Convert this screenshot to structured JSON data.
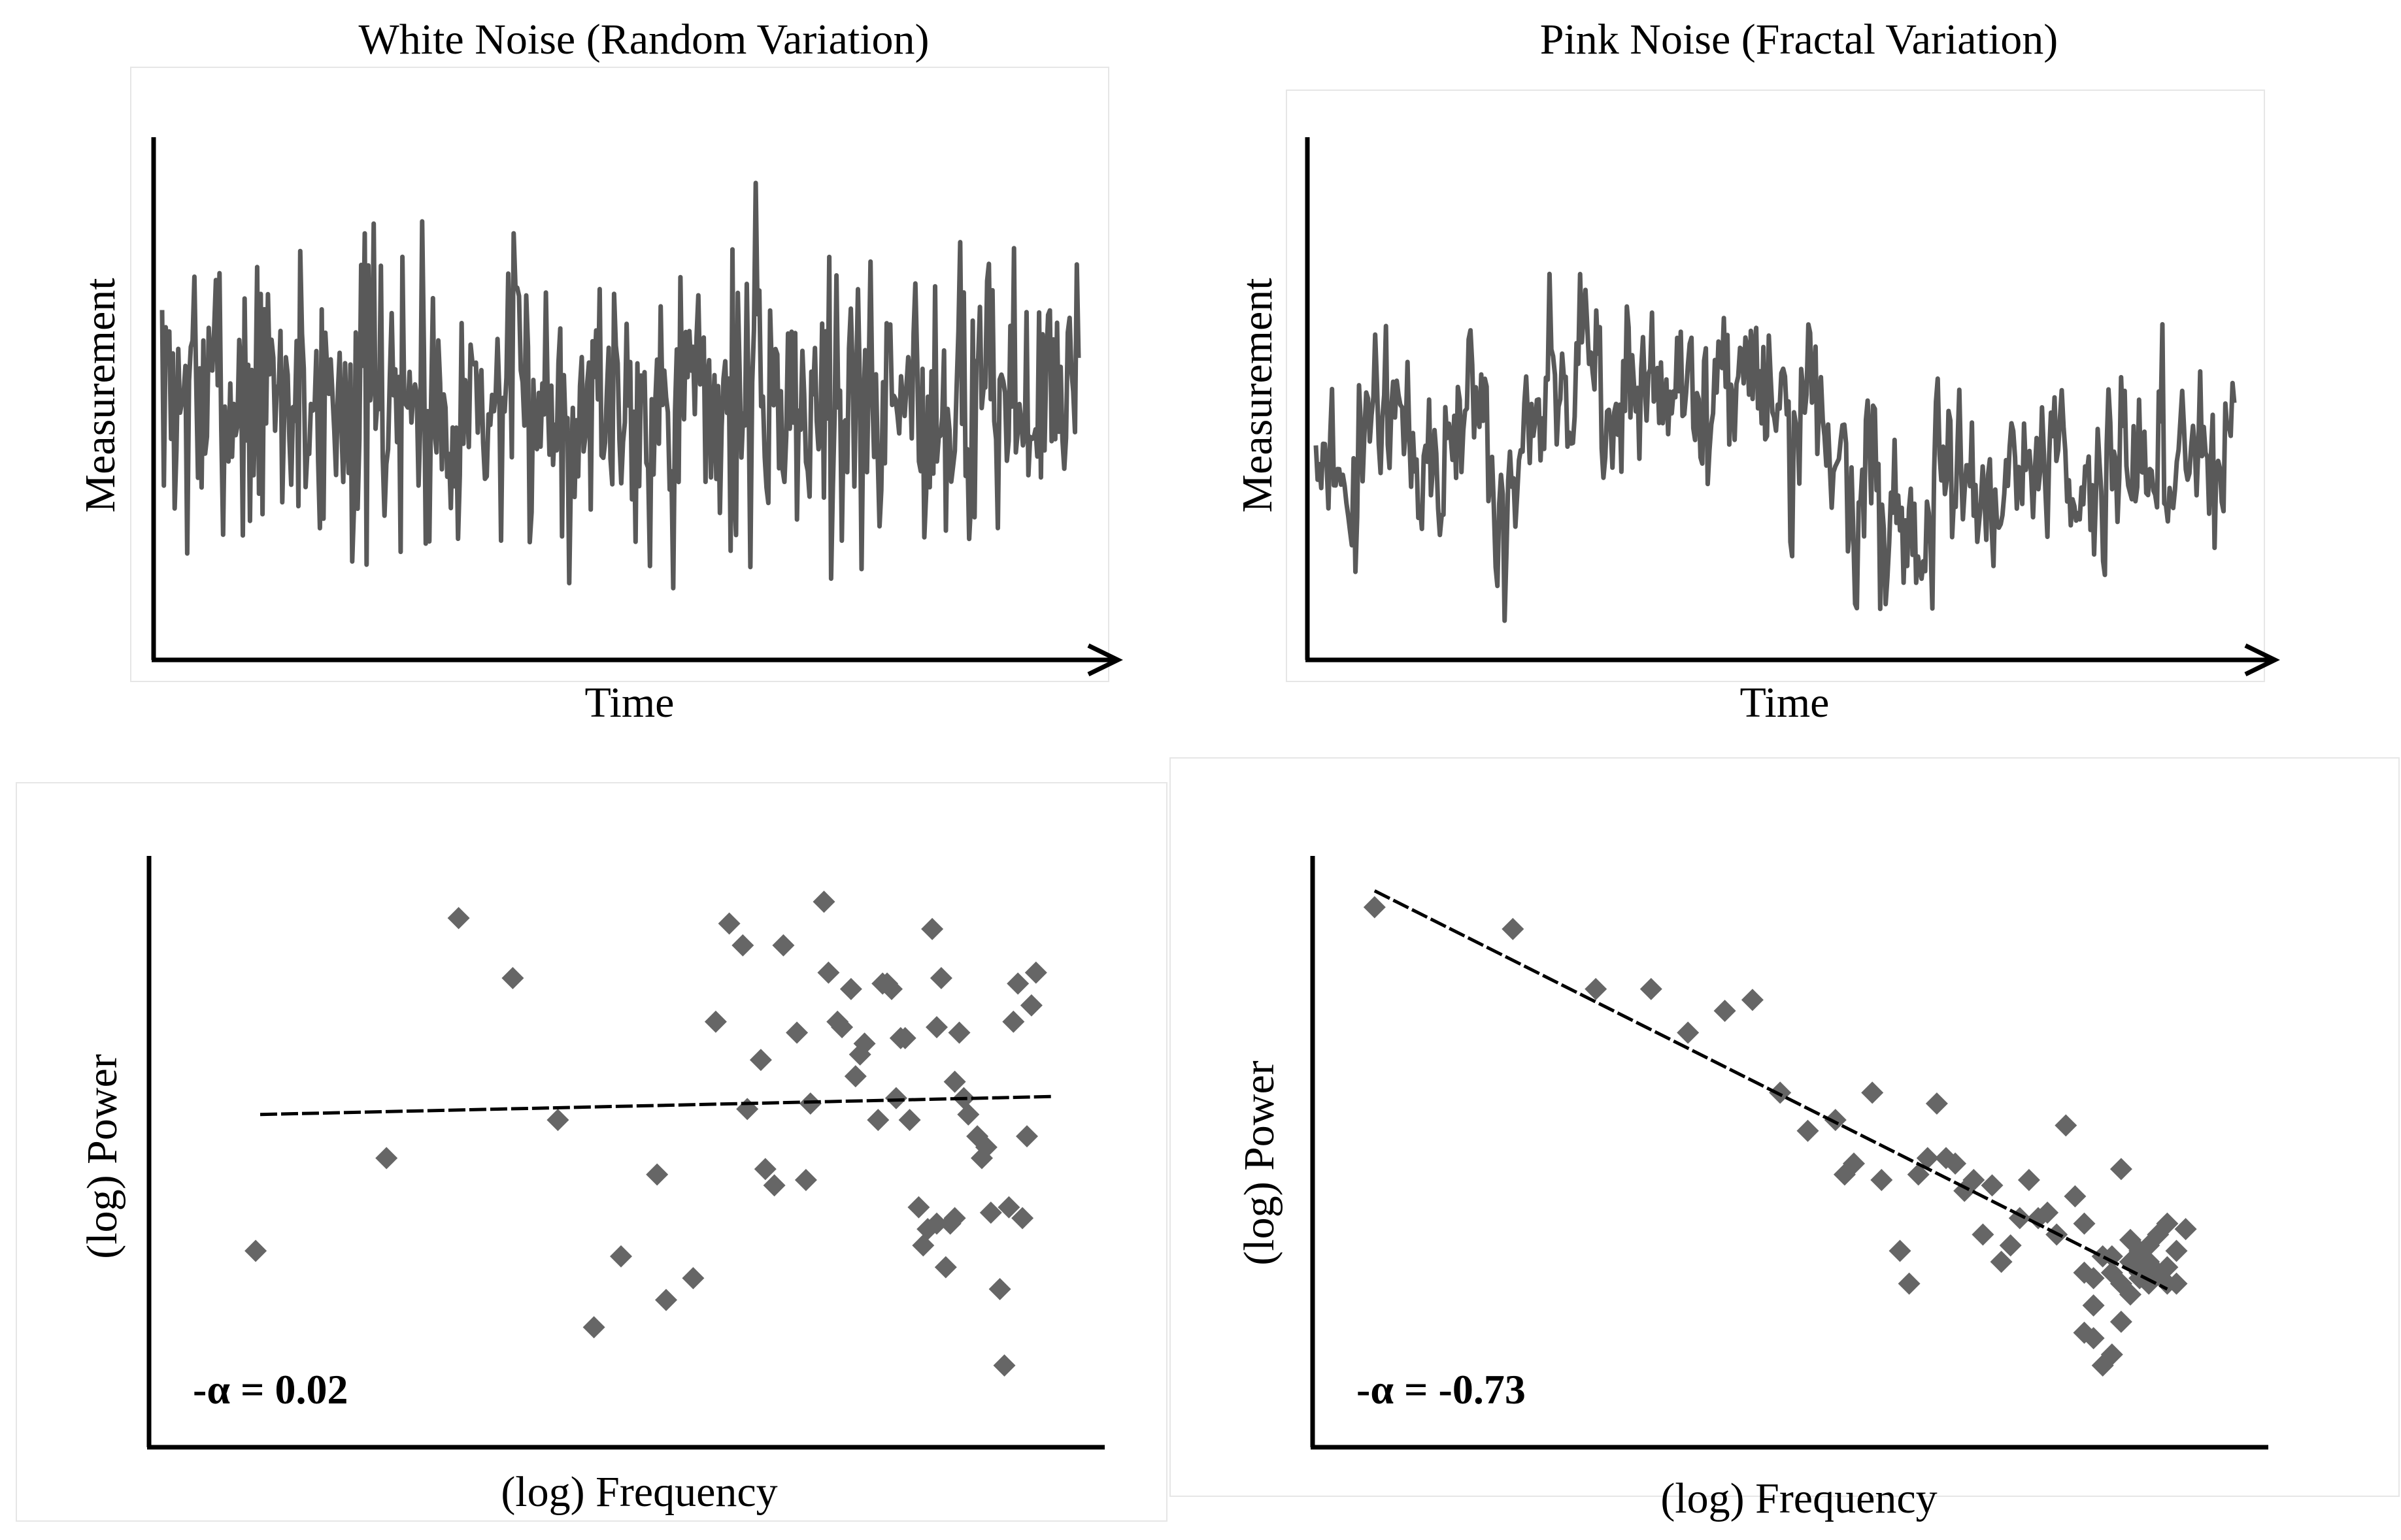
{
  "colors": {
    "series": "#595959",
    "marker": "#666666",
    "axis": "#000000",
    "trend": "#000000"
  },
  "chart_data": [
    {
      "id": "white-noise-series",
      "type": "line",
      "title": "White Noise (Random Variation)",
      "xlabel": "Time",
      "ylabel": "Measurement",
      "ticks": false,
      "grid": false,
      "ylim": [
        -1,
        1
      ],
      "generator": {
        "kind": "white",
        "n": 512,
        "seed": 7
      }
    },
    {
      "id": "pink-noise-series",
      "type": "line",
      "title": "Pink Noise (Fractal Variation)",
      "xlabel": "Time",
      "ylabel": "Measurement",
      "ticks": false,
      "grid": false,
      "ylim": [
        -1,
        1
      ],
      "generator": {
        "kind": "pink",
        "n": 512,
        "seed": 11
      }
    },
    {
      "id": "white-noise-spectrum",
      "type": "scatter",
      "xlabel": "(log) Frequency",
      "ylabel": "(log) Power",
      "annotation": "-α = 0.02",
      "slope": 0.02,
      "xlim": [
        0,
        100
      ],
      "ylim": [
        0,
        100
      ],
      "trendline": {
        "x": [
          10,
          98
        ],
        "y": [
          55.0,
          58.3
        ]
      },
      "points": [
        [
          9.5,
          30
        ],
        [
          24,
          47
        ],
        [
          32,
          91
        ],
        [
          38,
          80
        ],
        [
          43,
          54
        ],
        [
          47,
          16
        ],
        [
          50,
          29
        ],
        [
          54,
          44
        ],
        [
          55,
          21
        ],
        [
          58,
          25
        ],
        [
          60.5,
          72
        ],
        [
          62,
          90
        ],
        [
          63.5,
          86
        ],
        [
          64,
          56
        ],
        [
          65.5,
          65
        ],
        [
          66,
          45
        ],
        [
          67,
          42
        ],
        [
          68,
          86
        ],
        [
          69.5,
          70
        ],
        [
          70.5,
          43
        ],
        [
          71,
          57
        ],
        [
          72.5,
          94
        ],
        [
          73,
          81
        ],
        [
          74,
          72
        ],
        [
          74.5,
          71
        ],
        [
          75.5,
          78
        ],
        [
          76,
          62
        ],
        [
          76.5,
          66
        ],
        [
          77,
          68
        ],
        [
          78.5,
          54
        ],
        [
          79,
          79
        ],
        [
          79.5,
          79
        ],
        [
          80,
          78
        ],
        [
          80.5,
          58
        ],
        [
          81,
          69
        ],
        [
          81.5,
          69
        ],
        [
          82,
          54
        ],
        [
          83,
          38
        ],
        [
          84.5,
          89
        ],
        [
          85,
          71
        ],
        [
          85.5,
          80
        ],
        [
          85,
          35
        ],
        [
          83.5,
          31
        ],
        [
          84,
          34
        ],
        [
          86,
          27
        ],
        [
          86.5,
          35
        ],
        [
          87,
          61
        ],
        [
          87,
          36
        ],
        [
          87.5,
          70
        ],
        [
          88,
          58
        ],
        [
          88.5,
          55
        ],
        [
          89.5,
          51
        ],
        [
          90,
          47
        ],
        [
          90.5,
          49
        ],
        [
          91,
          37
        ],
        [
          92,
          23
        ],
        [
          92.5,
          9
        ],
        [
          93,
          38
        ],
        [
          93.5,
          72
        ],
        [
          94,
          79
        ],
        [
          94.5,
          36
        ],
        [
          95,
          51
        ],
        [
          95.5,
          75
        ],
        [
          96,
          81
        ]
      ]
    },
    {
      "id": "pink-noise-spectrum",
      "type": "scatter",
      "xlabel": "(log) Frequency",
      "ylabel": "(log) Power",
      "annotation": "-α = -0.73",
      "slope": -0.73,
      "xlim": [
        0,
        100
      ],
      "ylim": [
        0,
        100
      ],
      "trendline": {
        "x": [
          8,
          94
        ],
        "y": [
          96,
          23
        ]
      },
      "points": [
        [
          8,
          93
        ],
        [
          23,
          89
        ],
        [
          32,
          78
        ],
        [
          38,
          78
        ],
        [
          42,
          70
        ],
        [
          46,
          74
        ],
        [
          49,
          76
        ],
        [
          52,
          59
        ],
        [
          55,
          52
        ],
        [
          58,
          54
        ],
        [
          59,
          44
        ],
        [
          60,
          46
        ],
        [
          62,
          59
        ],
        [
          63,
          43
        ],
        [
          65,
          30
        ],
        [
          66,
          24
        ],
        [
          67,
          44
        ],
        [
          68,
          47
        ],
        [
          69,
          57
        ],
        [
          70,
          47
        ],
        [
          71,
          46
        ],
        [
          72,
          41
        ],
        [
          73,
          43
        ],
        [
          74,
          33
        ],
        [
          75,
          42
        ],
        [
          76,
          28
        ],
        [
          77,
          31
        ],
        [
          78,
          36
        ],
        [
          79,
          43
        ],
        [
          80,
          36
        ],
        [
          81,
          37
        ],
        [
          82,
          33
        ],
        [
          83,
          53
        ],
        [
          84,
          40
        ],
        [
          85,
          35
        ],
        [
          86,
          25
        ],
        [
          87,
          29
        ],
        [
          88,
          26
        ],
        [
          89,
          17
        ],
        [
          90,
          32
        ],
        [
          91,
          30
        ],
        [
          92,
          28
        ],
        [
          93,
          26
        ],
        [
          94,
          27
        ],
        [
          85,
          15
        ],
        [
          86,
          14
        ],
        [
          87,
          9
        ],
        [
          88,
          11
        ],
        [
          89,
          24
        ],
        [
          90,
          22
        ],
        [
          91,
          26
        ],
        [
          92,
          31
        ],
        [
          93,
          33
        ],
        [
          94,
          35
        ],
        [
          95,
          30
        ],
        [
          96,
          34
        ],
        [
          85,
          26
        ],
        [
          86,
          20
        ],
        [
          89,
          45
        ],
        [
          91,
          25
        ],
        [
          88,
          29
        ],
        [
          90,
          28
        ],
        [
          92,
          24
        ],
        [
          94,
          24
        ],
        [
          95,
          24
        ]
      ]
    }
  ]
}
